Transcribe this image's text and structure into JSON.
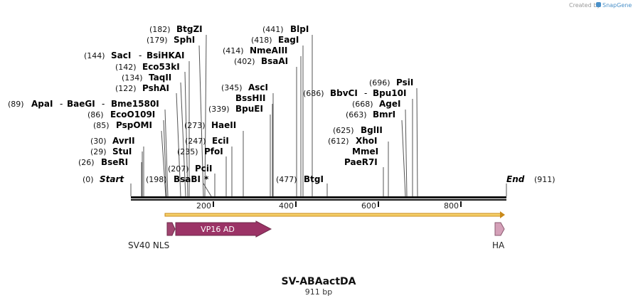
{
  "brand": {
    "created_by": "Created by",
    "name": "SnapGene"
  },
  "map": {
    "title": "SV-ABAactDA",
    "length_label": "911 bp",
    "length": 911,
    "start_label": "Start",
    "end_label": "End",
    "start_pos": "(0)",
    "end_pos": "(911)",
    "ticks": [
      "200",
      "400",
      "600",
      "800"
    ]
  },
  "colors": {
    "vp16": "#9b3366",
    "nls": "#a0446f",
    "ha": "#d4a0b8",
    "orf_fill": "#f5d06a",
    "orf_stroke": "#c98a1a"
  },
  "enzymes": {
    "start": {
      "pos": "(0)"
    },
    "bseri": {
      "pos": "(26)",
      "name": "BseRI"
    },
    "stui": {
      "pos": "(29)",
      "name": "StuI"
    },
    "avrii": {
      "pos": "(30)",
      "name": "AvrII"
    },
    "pspomi": {
      "pos": "(85)",
      "name": "PspOMI"
    },
    "ecoo109i": {
      "pos": "(86)",
      "name": "EcoO109I"
    },
    "apai": {
      "pos": "(89)",
      "name": "ApaI",
      "alt1": "BaeGI",
      "alt2": "Bme1580I"
    },
    "pshai": {
      "pos": "(122)",
      "name": "PshAI"
    },
    "taqii": {
      "pos": "(134)",
      "name": "TaqII"
    },
    "eco53ki": {
      "pos": "(142)",
      "name": "Eco53kI"
    },
    "saci": {
      "pos": "(144)",
      "name": "SacI",
      "alt": "BsiHKAI"
    },
    "sphi": {
      "pos": "(179)",
      "name": "SphI"
    },
    "btgzi": {
      "pos": "(182)",
      "name": "BtgZI"
    },
    "bsabi": {
      "pos": "(198)",
      "name": "BsaBI",
      "star": "*"
    },
    "pcii": {
      "pos": "(207)",
      "name": "PciI"
    },
    "pfoi": {
      "pos": "(235)",
      "name": "PfoI"
    },
    "ecii": {
      "pos": "(247)",
      "name": "EciI"
    },
    "haeii": {
      "pos": "(273)",
      "name": "HaeII"
    },
    "bpuei": {
      "pos": "(339)",
      "name": "BpuEI"
    },
    "bsshii": {
      "name": "BssHII"
    },
    "asci": {
      "pos": "(345)",
      "name": "AscI"
    },
    "bsaai": {
      "pos": "(402)",
      "name": "BsaAI"
    },
    "nmeaiii": {
      "pos": "(414)",
      "name": "NmeAIII"
    },
    "eagi": {
      "pos": "(418)",
      "name": "EagI"
    },
    "blpi": {
      "pos": "(441)",
      "name": "BlpI"
    },
    "btgi": {
      "pos": "(477)",
      "name": "BtgI"
    },
    "paer7i": {
      "name": "PaeR7I"
    },
    "mmei": {
      "name": "MmeI"
    },
    "xhoi": {
      "pos": "(612)",
      "name": "XhoI"
    },
    "bglii": {
      "pos": "(625)",
      "name": "BglII"
    },
    "bmri": {
      "pos": "(663)",
      "name": "BmrI"
    },
    "agei": {
      "pos": "(668)",
      "name": "AgeI"
    },
    "bbvci": {
      "pos": "(686)",
      "name": "BbvCI",
      "alt": "Bpu10I"
    },
    "psii": {
      "pos": "(696)",
      "name": "PsiI"
    }
  },
  "features": {
    "sv40_nls": "SV40 NLS",
    "vp16_ad": "VP16 AD",
    "ha": "HA"
  }
}
